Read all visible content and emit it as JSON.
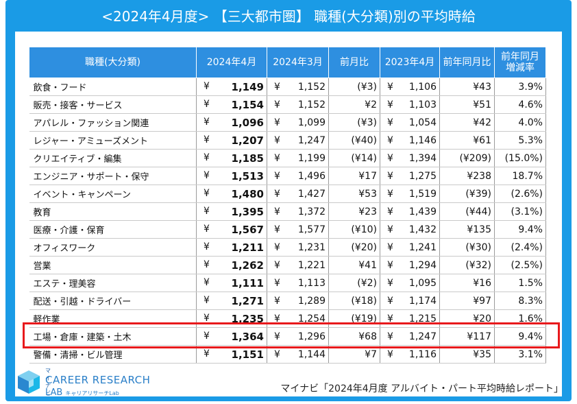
{
  "title": "<2024年4月度> 【三大都市圏】 職種(大分類)別の平均時給",
  "headers": {
    "category": "職種(大分類)",
    "apr2024": "2024年4月",
    "mar2024": "2024年3月",
    "mom": "前月比",
    "apr2023": "2023年4月",
    "yoy": "前年同月比",
    "yoy_pct_1": "前年同月",
    "yoy_pct_2": "増減率"
  },
  "rows": [
    {
      "category": "飲食・フード",
      "apr2024": "1,149",
      "mar2024": "1,152",
      "mom": "(¥3)",
      "mom_neg": true,
      "apr2023": "1,106",
      "yoy": "¥43",
      "yoy_neg": false,
      "yoy_pct": "3.9%",
      "pct_neg": false
    },
    {
      "category": "販売・接客・サービス",
      "apr2024": "1,154",
      "mar2024": "1,152",
      "mom": "¥2",
      "mom_neg": false,
      "apr2023": "1,103",
      "yoy": "¥51",
      "yoy_neg": false,
      "yoy_pct": "4.6%",
      "pct_neg": false
    },
    {
      "category": "アパレル・ファッション関連",
      "apr2024": "1,096",
      "mar2024": "1,099",
      "mom": "(¥3)",
      "mom_neg": true,
      "apr2023": "1,054",
      "yoy": "¥42",
      "yoy_neg": false,
      "yoy_pct": "4.0%",
      "pct_neg": false
    },
    {
      "category": "レジャー・アミューズメント",
      "apr2024": "1,207",
      "mar2024": "1,247",
      "mom": "(¥40)",
      "mom_neg": true,
      "apr2023": "1,146",
      "yoy": "¥61",
      "yoy_neg": false,
      "yoy_pct": "5.3%",
      "pct_neg": false
    },
    {
      "category": "クリエイティブ・編集",
      "apr2024": "1,185",
      "mar2024": "1,199",
      "mom": "(¥14)",
      "mom_neg": true,
      "apr2023": "1,394",
      "yoy": "(¥209)",
      "yoy_neg": true,
      "yoy_pct": "(15.0%)",
      "pct_neg": true
    },
    {
      "category": "エンジニア・サポート・保守",
      "apr2024": "1,513",
      "mar2024": "1,496",
      "mom": "¥17",
      "mom_neg": false,
      "apr2023": "1,275",
      "yoy": "¥238",
      "yoy_neg": false,
      "yoy_pct": "18.7%",
      "pct_neg": false
    },
    {
      "category": "イベント・キャンペーン",
      "apr2024": "1,480",
      "mar2024": "1,427",
      "mom": "¥53",
      "mom_neg": false,
      "apr2023": "1,519",
      "yoy": "(¥39)",
      "yoy_neg": true,
      "yoy_pct": "(2.6%)",
      "pct_neg": true
    },
    {
      "category": "教育",
      "apr2024": "1,395",
      "mar2024": "1,372",
      "mom": "¥23",
      "mom_neg": false,
      "apr2023": "1,439",
      "yoy": "(¥44)",
      "yoy_neg": true,
      "yoy_pct": "(3.1%)",
      "pct_neg": true
    },
    {
      "category": "医療・介護・保育",
      "apr2024": "1,567",
      "mar2024": "1,577",
      "mom": "(¥10)",
      "mom_neg": true,
      "apr2023": "1,432",
      "yoy": "¥135",
      "yoy_neg": false,
      "yoy_pct": "9.4%",
      "pct_neg": false
    },
    {
      "category": "オフィスワーク",
      "apr2024": "1,211",
      "mar2024": "1,231",
      "mom": "(¥20)",
      "mom_neg": true,
      "apr2023": "1,241",
      "yoy": "(¥30)",
      "yoy_neg": true,
      "yoy_pct": "(2.4%)",
      "pct_neg": true
    },
    {
      "category": "営業",
      "apr2024": "1,262",
      "mar2024": "1,221",
      "mom": "¥41",
      "mom_neg": false,
      "apr2023": "1,294",
      "yoy": "(¥32)",
      "yoy_neg": true,
      "yoy_pct": "(2.5%)",
      "pct_neg": true
    },
    {
      "category": "エステ・理美容",
      "apr2024": "1,111",
      "mar2024": "1,113",
      "mom": "(¥2)",
      "mom_neg": true,
      "apr2023": "1,095",
      "yoy": "¥16",
      "yoy_neg": false,
      "yoy_pct": "1.5%",
      "pct_neg": false
    },
    {
      "category": "配送・引越・ドライバー",
      "apr2024": "1,271",
      "mar2024": "1,289",
      "mom": "(¥18)",
      "mom_neg": true,
      "apr2023": "1,174",
      "yoy": "¥97",
      "yoy_neg": false,
      "yoy_pct": "8.3%",
      "pct_neg": false
    },
    {
      "category": "軽作業",
      "apr2024": "1,235",
      "mar2024": "1,254",
      "mom": "(¥19)",
      "mom_neg": true,
      "apr2023": "1,215",
      "yoy": "¥20",
      "yoy_neg": false,
      "yoy_pct": "1.6%",
      "pct_neg": false
    },
    {
      "category": "工場・倉庫・建築・土木",
      "apr2024": "1,364",
      "mar2024": "1,296",
      "mom": "¥68",
      "mom_neg": false,
      "apr2023": "1,247",
      "yoy": "¥117",
      "yoy_neg": false,
      "yoy_pct": "9.4%",
      "pct_neg": false
    },
    {
      "category": "警備・清掃・ビル管理",
      "apr2024": "1,151",
      "mar2024": "1,144",
      "mom": "¥7",
      "mom_neg": false,
      "apr2023": "1,116",
      "yoy": "¥35",
      "yoy_neg": false,
      "yoy_pct": "3.1%",
      "pct_neg": false
    }
  ],
  "yen": "¥",
  "highlighted_row": "工場・倉庫・建築・土木",
  "logo": {
    "brand_small": "マイナビ",
    "line1": "CAREER RESEARCH",
    "line2": "LAB",
    "line2_sub": "キャリアリサーチLab",
    "icon": "cube-logo-icon"
  },
  "source": "マイナビ「2024年4月度 アルバイト・パート平均時給レポート」",
  "colors": {
    "frame": "#1a9be6",
    "header": "#2e8fe0",
    "negative": "#e02020",
    "highlight": "#e8191c"
  }
}
